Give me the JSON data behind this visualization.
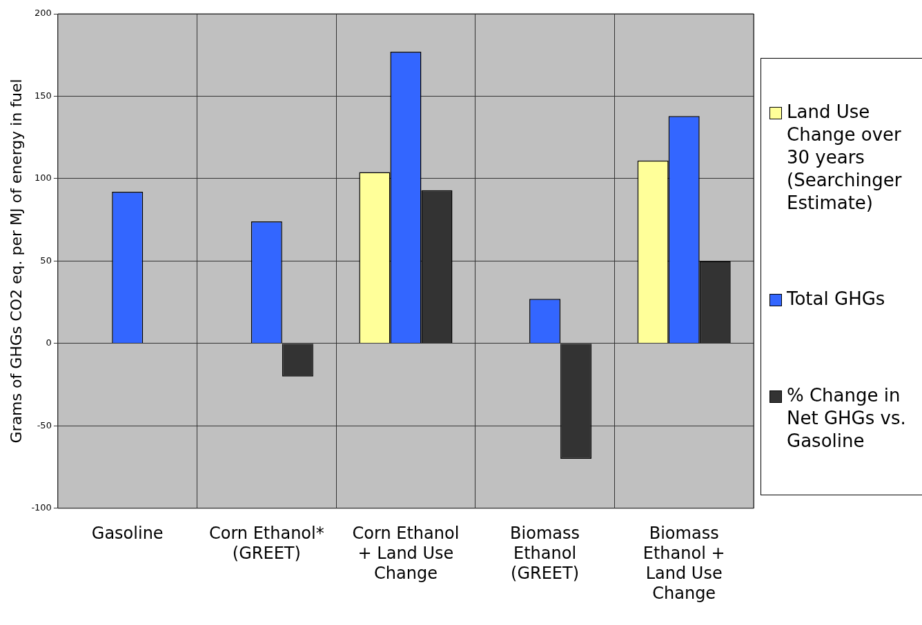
{
  "chart_data": {
    "type": "bar",
    "ylabel": "Grams of GHGs CO2 eq. per MJ of energy in fuel",
    "categories": [
      "Gasoline",
      "Corn Ethanol* (GREET)",
      "Corn Ethanol + Land Use Change",
      "Biomass Ethanol (GREET)",
      "Biomass Ethanol + Land Use Change"
    ],
    "series": [
      {
        "name": "Land Use Change over 30 years (Searchinger Estimate)",
        "color": "#ffff99",
        "values": [
          null,
          null,
          104,
          null,
          111
        ]
      },
      {
        "name": "Total GHGs",
        "color": "#3366ff",
        "values": [
          92,
          74,
          177,
          27,
          138
        ]
      },
      {
        "name": "% Change in Net GHGs vs. Gasoline",
        "color": "#333333",
        "values": [
          null,
          -20,
          93,
          -70,
          50
        ]
      }
    ],
    "ylim": [
      -100,
      200
    ],
    "yticks": [
      -100,
      -50,
      0,
      50,
      100,
      150,
      200
    ],
    "grid": true,
    "legend": "right"
  }
}
